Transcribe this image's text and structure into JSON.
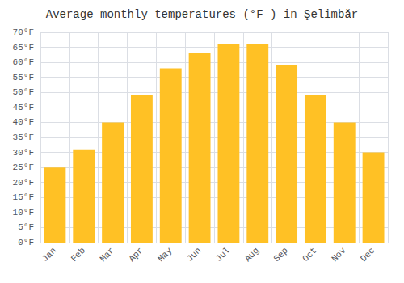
{
  "chart_data": {
    "type": "bar",
    "title": "Average monthly temperatures (°F ) in Şelimbăr",
    "categories": [
      "Jan",
      "Feb",
      "Mar",
      "Apr",
      "May",
      "Jun",
      "Jul",
      "Aug",
      "Sep",
      "Oct",
      "Nov",
      "Dec"
    ],
    "values": [
      25,
      31,
      40,
      49,
      58,
      63,
      66,
      66,
      59,
      49,
      40,
      30
    ],
    "color": "#FFC125",
    "ylim": [
      0,
      70
    ],
    "yticks": [
      {
        "value": 0,
        "label": "0°F"
      },
      {
        "value": 5,
        "label": "5°F"
      },
      {
        "value": 10,
        "label": "10°F"
      },
      {
        "value": 15,
        "label": "15°F"
      },
      {
        "value": 20,
        "label": "20°F"
      },
      {
        "value": 25,
        "label": "25°F"
      },
      {
        "value": 30,
        "label": "30°F"
      },
      {
        "value": 35,
        "label": "35°F"
      },
      {
        "value": 40,
        "label": "40°F"
      },
      {
        "value": 45,
        "label": "45°F"
      },
      {
        "value": 50,
        "label": "50°F"
      },
      {
        "value": 55,
        "label": "55°F"
      },
      {
        "value": 60,
        "label": "60°F"
      },
      {
        "value": 65,
        "label": "65°F"
      },
      {
        "value": 70,
        "label": "70°F"
      }
    ],
    "grid": true
  }
}
